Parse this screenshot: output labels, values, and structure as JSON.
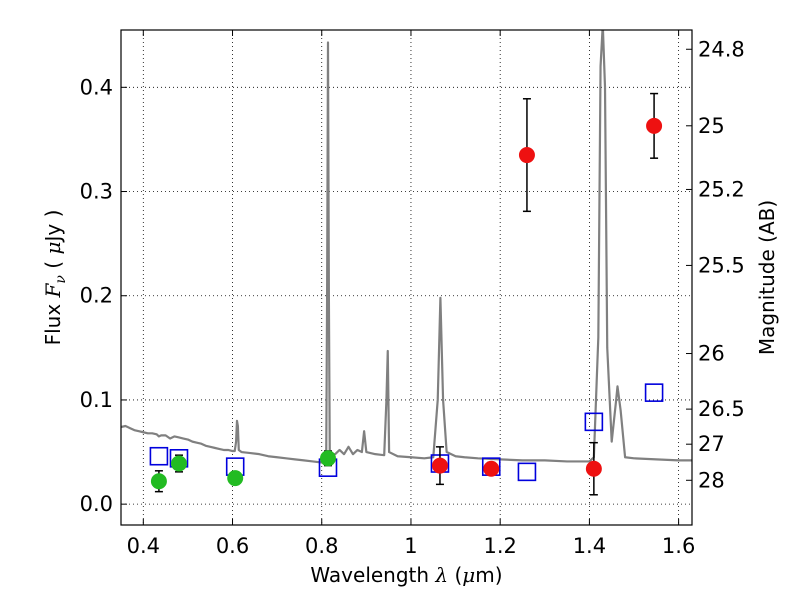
{
  "chart_data": {
    "type": "scatter",
    "title": "",
    "xlabel": {
      "pre": "Wavelength  ",
      "sym": "λ",
      "post": " (",
      "unit_sym": "μ",
      "unit_post": "m)"
    },
    "ylabel": {
      "pre": "Flux  ",
      "sym": "F",
      "sub": "ν",
      "post": "  ( ",
      "unit_sym": "μ",
      "unit_post": "Jy )"
    },
    "y2label": "Magnitude (AB)",
    "xlim": [
      0.35,
      1.63
    ],
    "ylim": [
      -0.02,
      0.455
    ],
    "grid": true,
    "x_ticks": [
      {
        "v": 0.4,
        "label": "0.4"
      },
      {
        "v": 0.6,
        "label": "0.6"
      },
      {
        "v": 0.8,
        "label": "0.8"
      },
      {
        "v": 1.0,
        "label": "1"
      },
      {
        "v": 1.2,
        "label": "1.2"
      },
      {
        "v": 1.4,
        "label": "1.4"
      },
      {
        "v": 1.6,
        "label": "1.6"
      }
    ],
    "y_ticks": [
      {
        "v": 0.0,
        "label": "0.0"
      },
      {
        "v": 0.1,
        "label": "0.1"
      },
      {
        "v": 0.2,
        "label": "0.2"
      },
      {
        "v": 0.3,
        "label": "0.3"
      },
      {
        "v": 0.4,
        "label": "0.4"
      }
    ],
    "mag_ticks": [
      {
        "v": 24.8,
        "label": "24.8"
      },
      {
        "v": 25,
        "label": "25"
      },
      {
        "v": 25.2,
        "label": "25.2"
      },
      {
        "v": 25.5,
        "label": "25.5"
      },
      {
        "v": 26,
        "label": "26"
      },
      {
        "v": 26.5,
        "label": "26.5"
      },
      {
        "v": 27,
        "label": "27"
      },
      {
        "v": 28,
        "label": "28"
      }
    ],
    "series": [
      {
        "kind": "model_spectrum",
        "color": "#808080",
        "points": [
          [
            0.35,
            0.074
          ],
          [
            0.36,
            0.075
          ],
          [
            0.37,
            0.073
          ],
          [
            0.38,
            0.071
          ],
          [
            0.39,
            0.07
          ],
          [
            0.4,
            0.069
          ],
          [
            0.41,
            0.068
          ],
          [
            0.42,
            0.068
          ],
          [
            0.43,
            0.067
          ],
          [
            0.435,
            0.065
          ],
          [
            0.44,
            0.066
          ],
          [
            0.45,
            0.066
          ],
          [
            0.46,
            0.063
          ],
          [
            0.47,
            0.065
          ],
          [
            0.48,
            0.064
          ],
          [
            0.49,
            0.063
          ],
          [
            0.5,
            0.062
          ],
          [
            0.51,
            0.06
          ],
          [
            0.52,
            0.059
          ],
          [
            0.53,
            0.058
          ],
          [
            0.54,
            0.056
          ],
          [
            0.55,
            0.055
          ],
          [
            0.56,
            0.054
          ],
          [
            0.57,
            0.053
          ],
          [
            0.58,
            0.052
          ],
          [
            0.59,
            0.052
          ],
          [
            0.6,
            0.051
          ],
          [
            0.605,
            0.051
          ],
          [
            0.608,
            0.06
          ],
          [
            0.61,
            0.08
          ],
          [
            0.612,
            0.075
          ],
          [
            0.614,
            0.052
          ],
          [
            0.62,
            0.05
          ],
          [
            0.64,
            0.049
          ],
          [
            0.66,
            0.048
          ],
          [
            0.68,
            0.046
          ],
          [
            0.7,
            0.045
          ],
          [
            0.72,
            0.044
          ],
          [
            0.74,
            0.043
          ],
          [
            0.76,
            0.042
          ],
          [
            0.78,
            0.041
          ],
          [
            0.8,
            0.04
          ],
          [
            0.81,
            0.042
          ],
          [
            0.812,
            0.2
          ],
          [
            0.814,
            0.443
          ],
          [
            0.816,
            0.2
          ],
          [
            0.818,
            0.047
          ],
          [
            0.83,
            0.048
          ],
          [
            0.84,
            0.052
          ],
          [
            0.85,
            0.048
          ],
          [
            0.86,
            0.055
          ],
          [
            0.87,
            0.048
          ],
          [
            0.88,
            0.052
          ],
          [
            0.89,
            0.05
          ],
          [
            0.895,
            0.07
          ],
          [
            0.9,
            0.05
          ],
          [
            0.92,
            0.048
          ],
          [
            0.94,
            0.047
          ],
          [
            0.945,
            0.1
          ],
          [
            0.948,
            0.147
          ],
          [
            0.951,
            0.05
          ],
          [
            0.97,
            0.046
          ],
          [
            1.0,
            0.045
          ],
          [
            1.03,
            0.044
          ],
          [
            1.05,
            0.045
          ],
          [
            1.06,
            0.1
          ],
          [
            1.066,
            0.198
          ],
          [
            1.072,
            0.1
          ],
          [
            1.08,
            0.05
          ],
          [
            1.1,
            0.046
          ],
          [
            1.12,
            0.045
          ],
          [
            1.15,
            0.044
          ],
          [
            1.2,
            0.043
          ],
          [
            1.25,
            0.042
          ],
          [
            1.3,
            0.042
          ],
          [
            1.35,
            0.041
          ],
          [
            1.4,
            0.041
          ],
          [
            1.41,
            0.045
          ],
          [
            1.42,
            0.16
          ],
          [
            1.425,
            0.42
          ],
          [
            1.43,
            0.46
          ],
          [
            1.435,
            0.4
          ],
          [
            1.44,
            0.15
          ],
          [
            1.45,
            0.06
          ],
          [
            1.46,
            0.1
          ],
          [
            1.463,
            0.113
          ],
          [
            1.47,
            0.09
          ],
          [
            1.48,
            0.045
          ],
          [
            1.5,
            0.044
          ],
          [
            1.55,
            0.043
          ],
          [
            1.6,
            0.042
          ],
          [
            1.63,
            0.042
          ]
        ]
      },
      {
        "kind": "observed_optical",
        "color": "#22bb22",
        "points": [
          {
            "x": 0.435,
            "y": 0.022,
            "err": 0.01
          },
          {
            "x": 0.48,
            "y": 0.039,
            "err": 0.008
          },
          {
            "x": 0.606,
            "y": 0.025,
            "err": 0.006
          },
          {
            "x": 0.814,
            "y": 0.044,
            "err": 0.007
          }
        ]
      },
      {
        "kind": "observed_nir",
        "color": "#ee1111",
        "points": [
          {
            "x": 1.065,
            "y": 0.037,
            "err": 0.018
          },
          {
            "x": 1.18,
            "y": 0.034,
            "err": 0.006
          },
          {
            "x": 1.26,
            "y": 0.335,
            "err": 0.054
          },
          {
            "x": 1.41,
            "y": 0.034,
            "err": 0.025
          },
          {
            "x": 1.545,
            "y": 0.363,
            "err": 0.031
          }
        ]
      },
      {
        "kind": "model_photometry",
        "color": "#0000dd",
        "points": [
          {
            "x": 0.435,
            "y": 0.046
          },
          {
            "x": 0.48,
            "y": 0.044
          },
          {
            "x": 0.606,
            "y": 0.036
          },
          {
            "x": 0.814,
            "y": 0.035
          },
          {
            "x": 1.065,
            "y": 0.039
          },
          {
            "x": 1.18,
            "y": 0.036
          },
          {
            "x": 1.26,
            "y": 0.031
          },
          {
            "x": 1.41,
            "y": 0.079
          },
          {
            "x": 1.545,
            "y": 0.107
          }
        ]
      }
    ]
  }
}
